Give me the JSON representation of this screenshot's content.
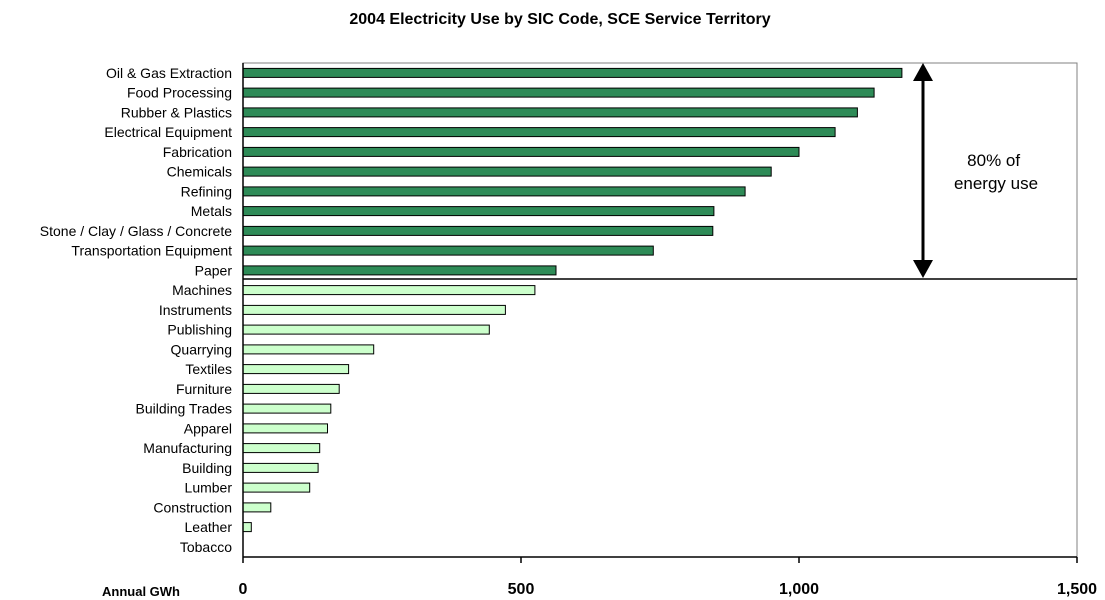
{
  "chart_data": {
    "type": "bar",
    "orientation": "horizontal",
    "title": "2004 Electricity Use by SIC Code, SCE Service Territory",
    "xlabel": "Annual GWh",
    "ylabel": "",
    "xlim": [
      0,
      1500
    ],
    "xticks": [
      0,
      500,
      1000,
      1500
    ],
    "xtick_labels": [
      "0",
      "500",
      "1,000",
      "1,500"
    ],
    "grid": false,
    "categories": [
      "Oil & Gas Extraction",
      "Food Processing",
      "Rubber & Plastics",
      "Electrical Equipment",
      "Fabrication",
      "Chemicals",
      "Refining",
      "Metals",
      "Stone / Clay / Glass / Concrete",
      "Transportation Equipment",
      "Paper",
      "Machines",
      "Instruments",
      "Publishing",
      "Quarrying",
      "Textiles",
      "Furniture",
      "Building Trades",
      "Apparel",
      "Manufacturing",
      "Building",
      "Lumber",
      "Construction",
      "Leather",
      "Tobacco"
    ],
    "values": [
      1185,
      1135,
      1105,
      1065,
      1000,
      950,
      903,
      847,
      845,
      738,
      563,
      525,
      472,
      443,
      235,
      190,
      173,
      158,
      152,
      138,
      135,
      120,
      50,
      15,
      0
    ],
    "top_group_count": 11,
    "colors": {
      "top_group": "#2e8b57",
      "bottom_group": "#ccffcc",
      "outline": "#000000"
    },
    "annotation": {
      "lines": [
        "80% of",
        "energy use"
      ]
    }
  }
}
